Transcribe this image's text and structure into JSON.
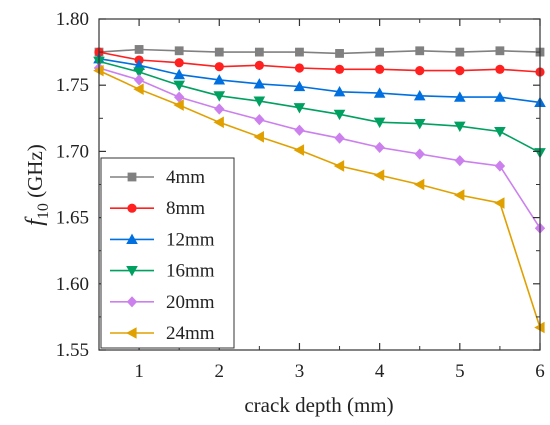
{
  "chart_data": {
    "type": "line",
    "xlabel": "crack depth (mm)",
    "ylabel_main": "f",
    "ylabel_sub": "10",
    "ylabel_unit": " (GHz)",
    "xlim": [
      0.5,
      6.0
    ],
    "ylim": [
      1.55,
      1.8
    ],
    "xticks": [
      1,
      2,
      3,
      4,
      5,
      6
    ],
    "xtick_labels": [
      "1",
      "2",
      "3",
      "4",
      "5",
      "6"
    ],
    "yticks": [
      1.55,
      1.6,
      1.65,
      1.7,
      1.75,
      1.8
    ],
    "ytick_labels": [
      "1.55",
      "1.60",
      "1.65",
      "1.70",
      "1.75",
      "1.80"
    ],
    "grid": false,
    "legend_position": "bottom-left",
    "x": [
      0.5,
      1.0,
      1.5,
      2.0,
      2.5,
      3.0,
      3.5,
      4.0,
      4.5,
      5.0,
      5.5,
      6.0
    ],
    "series": [
      {
        "name": "4mm",
        "color": "#808080",
        "marker": "square",
        "values": [
          1.775,
          1.777,
          1.776,
          1.775,
          1.775,
          1.775,
          1.774,
          1.775,
          1.776,
          1.775,
          1.776,
          1.775
        ]
      },
      {
        "name": "8mm",
        "color": "#ff2020",
        "marker": "circle",
        "values": [
          1.775,
          1.769,
          1.767,
          1.764,
          1.765,
          1.763,
          1.762,
          1.762,
          1.761,
          1.761,
          1.762,
          1.76
        ]
      },
      {
        "name": "12mm",
        "color": "#0070e0",
        "marker": "triangle-up",
        "values": [
          1.77,
          1.765,
          1.758,
          1.754,
          1.751,
          1.749,
          1.745,
          1.744,
          1.742,
          1.741,
          1.741,
          1.737
        ]
      },
      {
        "name": "16mm",
        "color": "#00a060",
        "marker": "triangle-down",
        "values": [
          1.768,
          1.76,
          1.75,
          1.742,
          1.738,
          1.733,
          1.728,
          1.722,
          1.721,
          1.719,
          1.715,
          1.699
        ]
      },
      {
        "name": "20mm",
        "color": "#cc80ee",
        "marker": "diamond",
        "values": [
          1.763,
          1.754,
          1.741,
          1.732,
          1.724,
          1.716,
          1.71,
          1.703,
          1.698,
          1.693,
          1.689,
          1.642
        ]
      },
      {
        "name": "24mm",
        "color": "#e0a000",
        "marker": "triangle-left",
        "values": [
          1.761,
          1.747,
          1.735,
          1.722,
          1.711,
          1.701,
          1.689,
          1.682,
          1.675,
          1.667,
          1.661,
          1.567
        ]
      }
    ]
  }
}
